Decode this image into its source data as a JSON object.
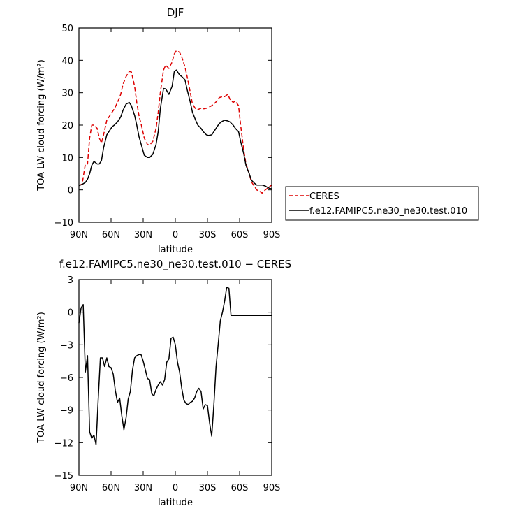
{
  "chart_data": [
    {
      "type": "line",
      "title": "DJF",
      "xlabel": "latitude",
      "ylabel": "TOA LW cloud forcing (W/m²)",
      "xlim": [
        90,
        -90
      ],
      "ylim": [
        -10,
        50
      ],
      "x_ticks": [
        {
          "value": 90,
          "label": "90N"
        },
        {
          "value": 60,
          "label": "60N"
        },
        {
          "value": 30,
          "label": "30N"
        },
        {
          "value": 0,
          "label": "0"
        },
        {
          "value": -30,
          "label": "30S"
        },
        {
          "value": -60,
          "label": "60S"
        },
        {
          "value": -90,
          "label": "90S"
        }
      ],
      "y_ticks": [
        {
          "value": -10,
          "label": "−10"
        },
        {
          "value": 0,
          "label": "0"
        },
        {
          "value": 10,
          "label": "10"
        },
        {
          "value": 20,
          "label": "20"
        },
        {
          "value": 30,
          "label": "30"
        },
        {
          "value": 40,
          "label": "40"
        },
        {
          "value": 50,
          "label": "50"
        }
      ],
      "legend": {
        "placement": "right-outside"
      },
      "series": [
        {
          "name": "CERES",
          "color": "#dd0000",
          "style": "dashed",
          "x": [
            90,
            87,
            84,
            82,
            80,
            78,
            76,
            73,
            71,
            69,
            67,
            64,
            62,
            59,
            57,
            54,
            51,
            49,
            46,
            43,
            41,
            38,
            36,
            34,
            31,
            29,
            26,
            24,
            21,
            18,
            16,
            14,
            11,
            9,
            6,
            3,
            1,
            -1,
            -4,
            -6,
            -9,
            -11,
            -14,
            -16,
            -19,
            -21,
            -24,
            -26,
            -29,
            -31,
            -34,
            -36,
            -39,
            -41,
            -44,
            -46,
            -49,
            -51,
            -54,
            -56,
            -59,
            -61,
            -64,
            -66,
            -69,
            -71,
            -74,
            -76,
            -79,
            -81,
            -84,
            -86,
            -88,
            -90
          ],
          "y": [
            1.3,
            1.8,
            8,
            8,
            16,
            20,
            20,
            19,
            16,
            14.5,
            17,
            21.5,
            22.5,
            24,
            25,
            27,
            29.5,
            32.5,
            35,
            36.6,
            36.4,
            32,
            27,
            23,
            19,
            16,
            14,
            13.8,
            15,
            19,
            24,
            30,
            37,
            38.5,
            37.5,
            39.5,
            42,
            43,
            42.5,
            41,
            38,
            35,
            30,
            26.5,
            25,
            24.8,
            25.2,
            25,
            25.2,
            25.5,
            26,
            26.5,
            27.5,
            28.5,
            28.8,
            28.8,
            29.5,
            28,
            27,
            27.5,
            26,
            20,
            12,
            8,
            5,
            2.5,
            1,
            0,
            -0.5,
            -1,
            0,
            0.5,
            1,
            1.5
          ]
        },
        {
          "name": "f.e12.FAMIPC5.ne30_ne30.test.010",
          "color": "#000000",
          "style": "solid",
          "x": [
            90,
            87,
            84,
            82,
            80,
            78,
            76,
            73,
            71,
            69,
            67,
            64,
            62,
            59,
            57,
            54,
            51,
            49,
            46,
            43,
            41,
            38,
            36,
            34,
            31,
            29,
            26,
            24,
            21,
            18,
            16,
            14,
            11,
            9,
            6,
            3,
            1,
            -1,
            -4,
            -6,
            -9,
            -11,
            -14,
            -16,
            -19,
            -21,
            -24,
            -26,
            -29,
            -31,
            -34,
            -36,
            -39,
            -41,
            -44,
            -46,
            -49,
            -51,
            -54,
            -56,
            -59,
            -61,
            -64,
            -66,
            -69,
            -71,
            -74,
            -76,
            -79,
            -81,
            -84,
            -86,
            -88,
            -90
          ],
          "y": [
            1.3,
            1.7,
            2.3,
            3.3,
            5,
            7.6,
            8.8,
            8,
            8,
            9,
            13,
            17,
            18,
            19.5,
            20,
            21,
            22.5,
            24.5,
            26.5,
            27,
            26,
            23,
            20,
            16.5,
            13,
            10.7,
            10,
            10,
            11,
            14,
            18,
            25,
            31.3,
            31.2,
            29.5,
            32,
            36.5,
            37,
            35.5,
            35,
            34,
            31,
            27,
            24,
            21.5,
            20,
            19,
            18,
            17,
            16.8,
            17,
            18,
            19.5,
            20.5,
            21.2,
            21.5,
            21.3,
            21,
            20,
            19,
            18,
            15,
            11,
            7.5,
            5,
            3,
            2,
            1.5,
            1.5,
            1.5,
            1.2,
            0.8,
            0.5,
            0.3
          ]
        }
      ]
    },
    {
      "type": "line",
      "title": "f.e12.FAMIPC5.ne30_ne30.test.010 − CERES",
      "xlabel": "latitude",
      "ylabel": "TOA LW cloud forcing (W/m²)",
      "xlim": [
        90,
        -90
      ],
      "ylim": [
        -15,
        3
      ],
      "x_ticks": [
        {
          "value": 90,
          "label": "90N"
        },
        {
          "value": 60,
          "label": "60N"
        },
        {
          "value": 30,
          "label": "30N"
        },
        {
          "value": 0,
          "label": "0"
        },
        {
          "value": -30,
          "label": "30S"
        },
        {
          "value": -60,
          "label": "60S"
        },
        {
          "value": -90,
          "label": "90S"
        }
      ],
      "y_ticks": [
        {
          "value": -15,
          "label": "−15"
        },
        {
          "value": -12,
          "label": "−12"
        },
        {
          "value": -9,
          "label": "−9"
        },
        {
          "value": -6,
          "label": "−6"
        },
        {
          "value": -3,
          "label": "−3"
        },
        {
          "value": 0,
          "label": "0"
        },
        {
          "value": 3,
          "label": "3"
        }
      ],
      "series": [
        {
          "color": "#000000",
          "style": "solid",
          "x": [
            90,
            88,
            86,
            84,
            82,
            80,
            78,
            76,
            74,
            72,
            70,
            68,
            66,
            64,
            62,
            60,
            58,
            56,
            54,
            52,
            50,
            48,
            46,
            44,
            42,
            40,
            38,
            36,
            34,
            32,
            30,
            28,
            26,
            24,
            22,
            20,
            18,
            16,
            14,
            12,
            10,
            8,
            6,
            4,
            2,
            0,
            -2,
            -4,
            -6,
            -8,
            -10,
            -12,
            -14,
            -16,
            -18,
            -20,
            -22,
            -24,
            -26,
            -28,
            -30,
            -32,
            -34,
            -36,
            -38,
            -40,
            -42,
            -44,
            -46,
            -48,
            -50,
            -52,
            -54,
            -56,
            -58,
            -60,
            -62,
            -64,
            -66,
            -68,
            -70,
            -72,
            -74,
            -76,
            -78,
            -80,
            -82,
            -84,
            -86,
            -88,
            -90
          ],
          "y": [
            -1,
            0.4,
            0.7,
            -5.5,
            -4,
            -11,
            -11.6,
            -11.3,
            -12.2,
            -8,
            -4.2,
            -4.2,
            -5,
            -4.2,
            -5,
            -5.1,
            -5.7,
            -7.2,
            -8.3,
            -7.9,
            -9.5,
            -10.8,
            -9.7,
            -8,
            -7.3,
            -5.3,
            -4.2,
            -4,
            -3.9,
            -3.9,
            -4.5,
            -5.3,
            -6.1,
            -6.2,
            -7.5,
            -7.7,
            -7.1,
            -6.7,
            -6.4,
            -6.7,
            -6.2,
            -4.6,
            -4.3,
            -2.4,
            -2.3,
            -3,
            -4.6,
            -5.5,
            -7,
            -8.1,
            -8.4,
            -8.5,
            -8.3,
            -8.2,
            -7.9,
            -7.3,
            -7,
            -7.3,
            -8.9,
            -8.5,
            -8.6,
            -10.2,
            -11.4,
            -8.5,
            -5,
            -3,
            -0.8,
            0,
            1,
            2.3,
            2.2,
            -0.3,
            -0.3,
            -0.3,
            -0.3,
            -0.3,
            -0.3,
            -0.3,
            -0.3,
            -0.3,
            -0.3,
            -0.3,
            -0.3,
            -0.3,
            -0.3,
            -0.3,
            -0.3,
            -0.3,
            -0.3,
            -0.3,
            -0.3
          ]
        }
      ]
    }
  ]
}
